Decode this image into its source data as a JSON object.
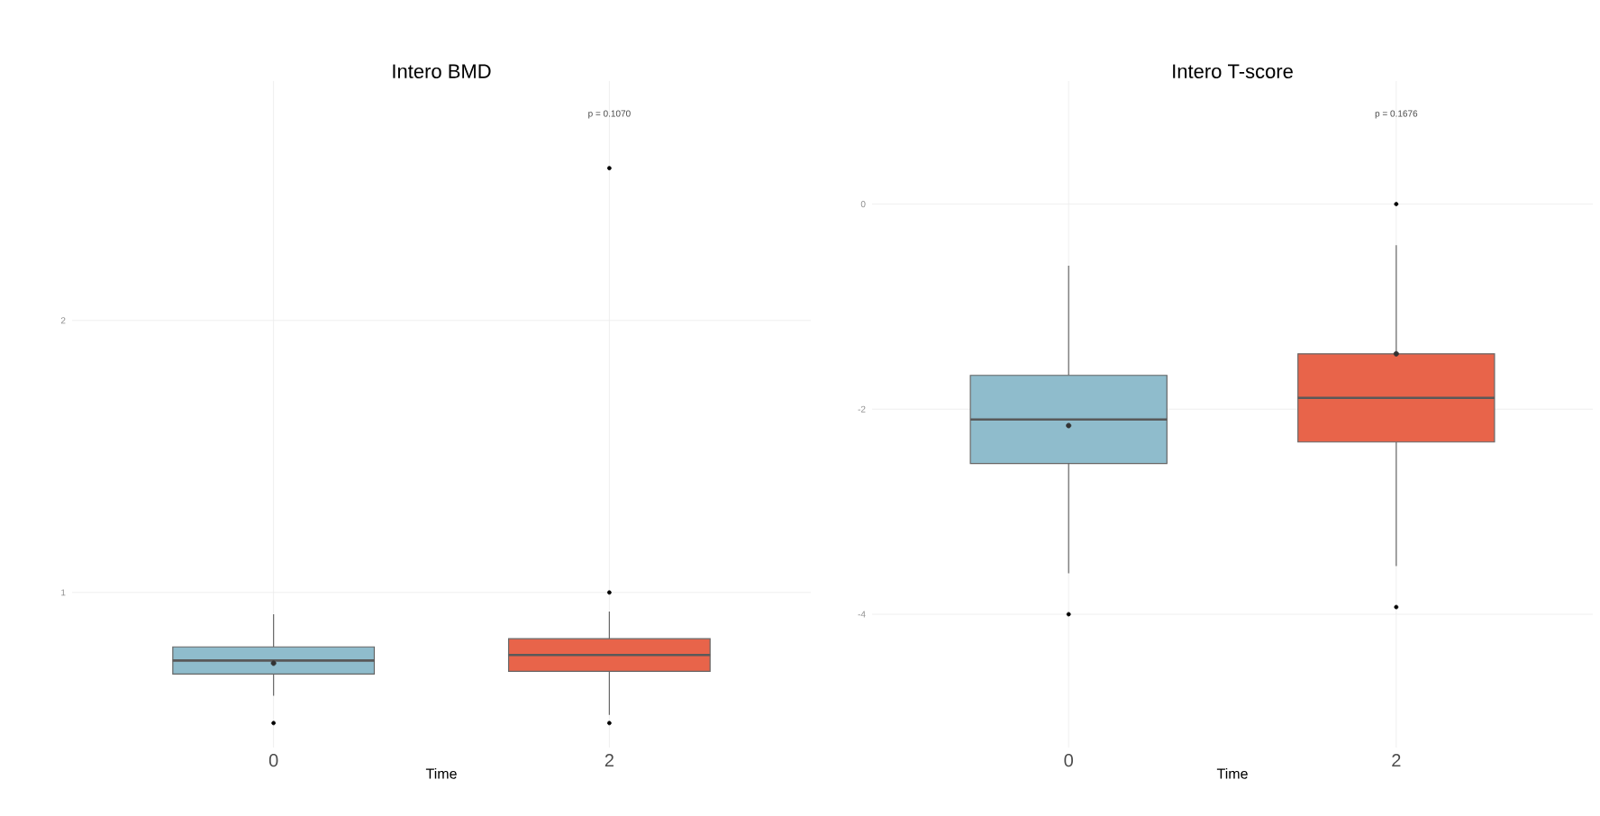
{
  "chart_data": [
    {
      "type": "box",
      "title": "Intero BMD",
      "xlabel": "Time",
      "categories": [
        "0",
        "2"
      ],
      "colors": [
        "#8fbccc",
        "#e8644a"
      ],
      "boxes": [
        {
          "low": 0.62,
          "q1": 0.7,
          "median": 0.75,
          "q3": 0.8,
          "high": 0.92,
          "mean": 0.74,
          "outliers": [
            0.52
          ]
        },
        {
          "low": 0.55,
          "q1": 0.71,
          "median": 0.77,
          "q3": 0.83,
          "high": 0.93,
          "outliers": [
            0.52,
            1.0,
            2.56
          ]
        }
      ],
      "ylim": [
        0.43,
        2.88
      ],
      "yticks": [
        1,
        2
      ],
      "grid": true,
      "annotations": [
        "p = 0.1070"
      ]
    },
    {
      "type": "box",
      "title": "Intero T-score",
      "xlabel": "Time",
      "categories": [
        "0",
        "2"
      ],
      "colors": [
        "#8fbccc",
        "#e8644a"
      ],
      "boxes": [
        {
          "low": -3.6,
          "q1": -2.53,
          "median": -2.1,
          "q3": -1.67,
          "high": -0.6,
          "mean": -2.16,
          "outliers": [
            -4.0
          ]
        },
        {
          "low": -3.53,
          "q1": -2.32,
          "median": -1.89,
          "q3": -1.46,
          "high": -0.4,
          "mean": -1.46,
          "outliers": [
            -3.93,
            0.0
          ]
        }
      ],
      "ylim": [
        -5.3,
        1.2
      ],
      "yticks": [
        -4,
        -2,
        0
      ],
      "grid": true,
      "annotations": [
        "p = 0.1676"
      ]
    }
  ]
}
